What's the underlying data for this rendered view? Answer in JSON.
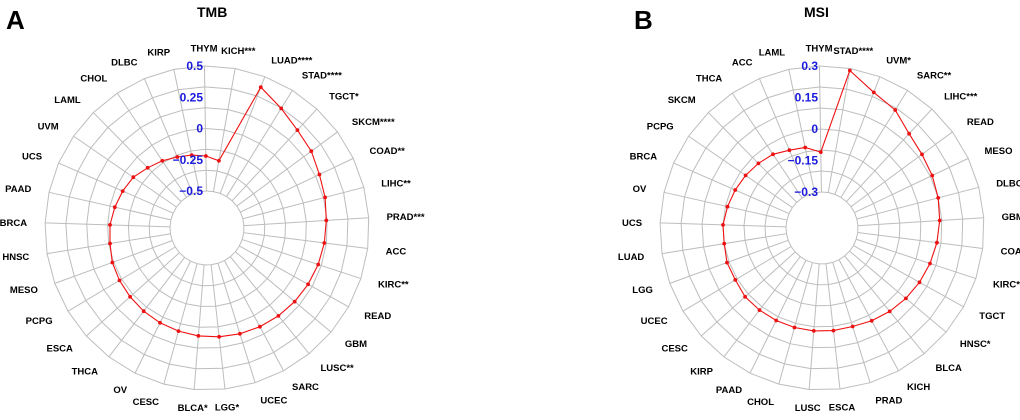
{
  "chart_data": [
    {
      "type": "radar",
      "panel_label": "A",
      "title": "TMB",
      "colors": {
        "series": "#ee1111",
        "grid": "#bdbdbd",
        "ticks": "#1a1adb"
      },
      "ylim": [
        -0.5,
        0.5
      ],
      "ticks": [
        "0.5",
        "0.25",
        "0",
        "−0.25",
        "−0.5"
      ],
      "categories": [
        "KICH***",
        "LUAD****",
        "STAD****",
        "TGCT*",
        "SKCM****",
        "COAD**",
        "LIHC**",
        "PRAD***",
        "ACC",
        "KIRC**",
        "READ",
        "GBM",
        "LUSC**",
        "SARC",
        "UCEC",
        "LGG*",
        "BLCA*",
        "CESC",
        "OV",
        "THCA",
        "ESCA",
        "PCPG",
        "MESO",
        "HNSC",
        "BRCA",
        "PAAD",
        "UCS",
        "UVM",
        "LAML",
        "CHOL",
        "DLBC",
        "KIRP",
        "THYM"
      ],
      "values": [
        -0.25,
        0.41,
        0.33,
        0.27,
        0.24,
        0.2,
        0.18,
        0.16,
        0.15,
        0.14,
        0.13,
        0.12,
        0.11,
        0.1,
        0.09,
        0.08,
        0.07,
        0.06,
        0.05,
        0.04,
        0.03,
        0.02,
        0.01,
        -0.01,
        -0.02,
        -0.04,
        -0.06,
        -0.08,
        -0.12,
        -0.15,
        -0.18,
        -0.2,
        -0.22
      ]
    },
    {
      "type": "radar",
      "panel_label": "B",
      "title": "MSI",
      "colors": {
        "series": "#ee1111",
        "grid": "#bdbdbd",
        "ticks": "#1a1adb"
      },
      "ylim": [
        -0.3,
        0.3
      ],
      "ticks": [
        "0.3",
        "0.15",
        "0",
        "−0.15",
        "−0.3"
      ],
      "categories": [
        "STAD****",
        "UVM*",
        "SARC**",
        "LIHC***",
        "READ",
        "MESO",
        "DLBC",
        "GBM",
        "COAD*",
        "KIRC*",
        "TGCT",
        "HNSC*",
        "BLCA",
        "KICH",
        "PRAD",
        "ESCA",
        "LUSC",
        "CHOL",
        "PAAD",
        "KIRP",
        "CESC",
        "UCEC",
        "LGG",
        "LUAD",
        "UCS",
        "OV",
        "BRCA",
        "PCPG",
        "SKCM",
        "THCA",
        "ACC",
        "LAML",
        "THYM"
      ],
      "values": [
        0.29,
        0.22,
        0.19,
        0.14,
        0.12,
        0.11,
        0.1,
        0.09,
        0.08,
        0.07,
        0.06,
        0.05,
        0.04,
        0.03,
        0.02,
        0.02,
        0.02,
        0.02,
        0.02,
        0.02,
        0.02,
        0.01,
        0.01,
        0.0,
        0.0,
        -0.01,
        -0.02,
        -0.03,
        -0.04,
        -0.05,
        -0.07,
        -0.08,
        -0.11
      ]
    }
  ]
}
